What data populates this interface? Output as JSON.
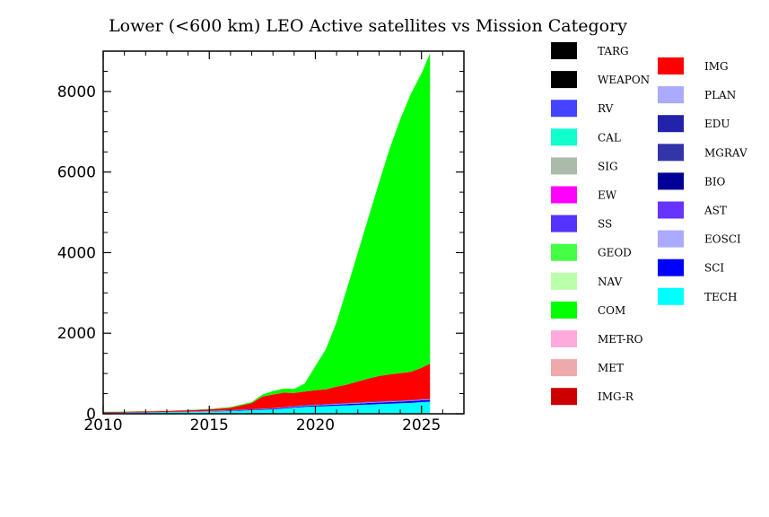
{
  "chart_data": {
    "type": "area",
    "stacked": true,
    "title": "Lower (<600 km) LEO Active satellites vs Mission Category",
    "xlabel": "",
    "ylabel": "",
    "xlim": [
      2010,
      2027
    ],
    "ylim": [
      0,
      9000
    ],
    "x_ticks": [
      2010,
      2015,
      2020,
      2025
    ],
    "y_ticks": [
      0,
      2000,
      4000,
      6000,
      8000
    ],
    "grid": false,
    "legend_position": "right",
    "x": [
      2010,
      2011,
      2012,
      2013,
      2014,
      2015,
      2016,
      2017,
      2017.5,
      2018,
      2018.5,
      2019,
      2019.5,
      2020,
      2020.5,
      2021,
      2021.5,
      2022,
      2022.5,
      2023,
      2023.5,
      2024,
      2024.5,
      2025,
      2025.4
    ],
    "series": [
      {
        "name": "TECH",
        "color": "#00ffff",
        "values": [
          20,
          25,
          30,
          35,
          45,
          55,
          70,
          90,
          100,
          110,
          130,
          150,
          170,
          180,
          190,
          200,
          210,
          220,
          230,
          240,
          250,
          260,
          270,
          290,
          300
        ]
      },
      {
        "name": "SCI",
        "color": "#0000ff",
        "values": [
          5,
          5,
          5,
          6,
          6,
          8,
          10,
          12,
          14,
          15,
          18,
          20,
          22,
          25,
          28,
          30,
          32,
          35,
          38,
          40,
          40,
          42,
          44,
          45,
          45
        ]
      },
      {
        "name": "EOSCI",
        "color": "#aaaaff",
        "values": [
          2,
          2,
          2,
          2,
          3,
          3,
          4,
          5,
          5,
          6,
          6,
          7,
          7,
          8,
          8,
          9,
          9,
          10,
          10,
          10,
          10,
          10,
          10,
          10,
          10
        ]
      },
      {
        "name": "AST",
        "color": "#6633ff",
        "values": [
          1,
          1,
          1,
          1,
          1,
          2,
          2,
          3,
          3,
          4,
          4,
          5,
          5,
          6,
          6,
          7,
          7,
          8,
          8,
          9,
          9,
          10,
          10,
          10,
          10
        ]
      },
      {
        "name": "BIO",
        "color": "#000099",
        "values": [
          0,
          0,
          0,
          0,
          0,
          0,
          1,
          1,
          1,
          1,
          1,
          2,
          2,
          2,
          2,
          2,
          3,
          3,
          3,
          3,
          3,
          3,
          3,
          3,
          3
        ]
      },
      {
        "name": "MGRAV",
        "color": "#3333aa",
        "values": [
          0,
          0,
          0,
          0,
          0,
          0,
          0,
          0,
          0,
          0,
          0,
          0,
          0,
          0,
          0,
          0,
          0,
          0,
          0,
          0,
          0,
          0,
          0,
          0,
          0
        ]
      },
      {
        "name": "EDU",
        "color": "#2222aa",
        "values": [
          1,
          1,
          1,
          1,
          2,
          2,
          3,
          3,
          3,
          4,
          4,
          5,
          5,
          5,
          5,
          5,
          5,
          5,
          5,
          5,
          5,
          5,
          5,
          5,
          5
        ]
      },
      {
        "name": "PLAN",
        "color": "#aaaaff",
        "values": [
          0,
          0,
          0,
          0,
          0,
          0,
          0,
          0,
          0,
          0,
          0,
          0,
          0,
          0,
          0,
          0,
          0,
          0,
          0,
          0,
          0,
          0,
          0,
          0,
          0
        ]
      },
      {
        "name": "IMG",
        "color": "#ff0000",
        "values": [
          15,
          18,
          20,
          25,
          30,
          40,
          60,
          150,
          300,
          340,
          360,
          330,
          340,
          360,
          370,
          420,
          460,
          520,
          580,
          630,
          660,
          680,
          700,
          780,
          870
        ]
      },
      {
        "name": "IMG-R",
        "color": "#cc0000",
        "values": [
          0,
          0,
          0,
          0,
          0,
          0,
          0,
          0,
          0,
          0,
          0,
          0,
          0,
          0,
          0,
          0,
          0,
          0,
          0,
          0,
          0,
          0,
          0,
          0,
          0
        ]
      },
      {
        "name": "MET",
        "color": "#eeaaaa",
        "values": [
          1,
          1,
          1,
          1,
          1,
          1,
          1,
          1,
          1,
          1,
          1,
          1,
          1,
          1,
          1,
          1,
          1,
          1,
          1,
          1,
          1,
          1,
          1,
          1,
          1
        ]
      },
      {
        "name": "MET-RO",
        "color": "#ffaadd",
        "values": [
          0,
          0,
          0,
          0,
          0,
          0,
          0,
          0,
          0,
          0,
          0,
          0,
          0,
          0,
          0,
          0,
          0,
          0,
          0,
          0,
          0,
          0,
          0,
          0,
          0
        ]
      },
      {
        "name": "COM",
        "color": "#00ff00",
        "values": [
          5,
          5,
          5,
          5,
          8,
          10,
          15,
          25,
          50,
          80,
          100,
          100,
          200,
          600,
          1000,
          1600,
          2400,
          3200,
          4000,
          4800,
          5600,
          6300,
          6900,
          7300,
          7700
        ]
      },
      {
        "name": "NAV",
        "color": "#bbffaa",
        "values": [
          0,
          0,
          0,
          0,
          0,
          0,
          0,
          0,
          0,
          0,
          0,
          0,
          0,
          0,
          0,
          0,
          0,
          0,
          0,
          0,
          0,
          0,
          0,
          0,
          0
        ]
      },
      {
        "name": "GEOD",
        "color": "#44ff44",
        "values": [
          0,
          0,
          0,
          0,
          0,
          0,
          0,
          0,
          0,
          0,
          0,
          0,
          0,
          0,
          0,
          0,
          0,
          0,
          0,
          0,
          0,
          0,
          0,
          0,
          0
        ]
      },
      {
        "name": "SS",
        "color": "#5533ff",
        "values": [
          0,
          0,
          0,
          0,
          0,
          0,
          0,
          0,
          0,
          0,
          0,
          0,
          0,
          0,
          0,
          0,
          0,
          0,
          0,
          0,
          0,
          0,
          0,
          0,
          0
        ]
      },
      {
        "name": "EW",
        "color": "#ff00ff",
        "values": [
          0,
          0,
          0,
          0,
          0,
          0,
          0,
          0,
          0,
          0,
          0,
          0,
          0,
          0,
          0,
          0,
          0,
          0,
          0,
          0,
          0,
          0,
          0,
          0,
          0
        ]
      },
      {
        "name": "SIG",
        "color": "#aabbaa",
        "values": [
          0,
          0,
          0,
          0,
          0,
          0,
          0,
          0,
          0,
          0,
          0,
          0,
          0,
          0,
          0,
          0,
          0,
          0,
          0,
          0,
          0,
          0,
          0,
          0,
          0
        ]
      },
      {
        "name": "CAL",
        "color": "#11ffcc",
        "values": [
          0,
          0,
          0,
          0,
          0,
          0,
          0,
          0,
          0,
          0,
          0,
          0,
          0,
          0,
          0,
          0,
          0,
          0,
          0,
          0,
          0,
          0,
          0,
          0,
          0
        ]
      },
      {
        "name": "RV",
        "color": "#4444ff",
        "values": [
          0,
          0,
          0,
          0,
          0,
          0,
          0,
          0,
          0,
          0,
          0,
          0,
          0,
          0,
          0,
          0,
          0,
          0,
          0,
          0,
          0,
          0,
          0,
          0,
          0
        ]
      },
      {
        "name": "WEAPON",
        "color": "#000000",
        "values": [
          0,
          0,
          0,
          0,
          0,
          0,
          0,
          0,
          0,
          0,
          0,
          0,
          0,
          0,
          0,
          0,
          0,
          0,
          0,
          0,
          0,
          0,
          0,
          0,
          0
        ]
      },
      {
        "name": "TARG",
        "color": "#000000",
        "values": [
          0,
          0,
          0,
          0,
          0,
          0,
          0,
          0,
          0,
          0,
          0,
          0,
          0,
          0,
          0,
          0,
          0,
          0,
          0,
          0,
          0,
          0,
          0,
          0,
          0
        ]
      }
    ],
    "legend_columns": [
      [
        "TARG",
        "WEAPON",
        "RV",
        "CAL",
        "SIG",
        "EW",
        "SS",
        "GEOD",
        "NAV",
        "COM",
        "MET-RO",
        "MET",
        "IMG-R"
      ],
      [
        "IMG",
        "PLAN",
        "EDU",
        "MGRAV",
        "BIO",
        "AST",
        "EOSCI",
        "SCI",
        "TECH"
      ]
    ]
  }
}
